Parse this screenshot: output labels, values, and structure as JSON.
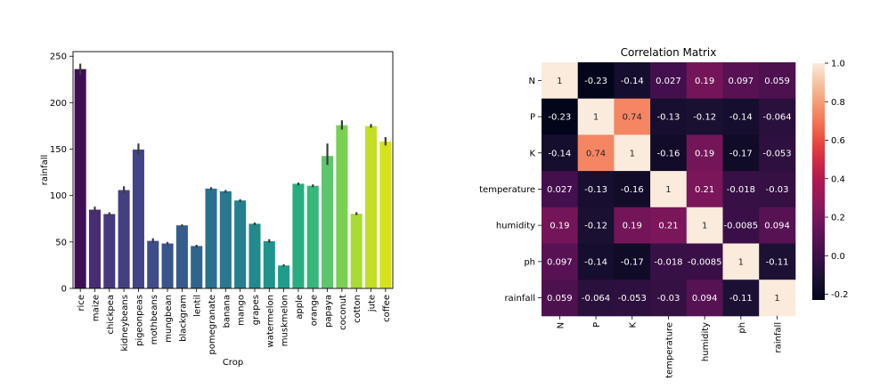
{
  "chart_data": [
    {
      "type": "bar",
      "title": "",
      "xlabel": "Crop",
      "ylabel": "rainfall",
      "ylim": [
        0,
        255
      ],
      "yticks": [
        0,
        50,
        100,
        150,
        200,
        250
      ],
      "grid": false,
      "categories": [
        "rice",
        "maize",
        "chickpea",
        "kidneybeans",
        "pigeonpeas",
        "mothbeans",
        "mungbean",
        "blackgram",
        "lentil",
        "pomegranate",
        "banana",
        "mango",
        "grapes",
        "watermelon",
        "muskmelon",
        "apple",
        "orange",
        "papaya",
        "coconut",
        "cotton",
        "jute",
        "coffee"
      ],
      "values": [
        236.2,
        84.8,
        80.1,
        105.9,
        149.5,
        51.2,
        48.4,
        67.9,
        45.7,
        107.5,
        104.6,
        94.7,
        69.6,
        50.8,
        24.7,
        112.7,
        110.5,
        142.6,
        175.7,
        80.4,
        174.8,
        158.1
      ],
      "error_low": [
        230,
        82,
        78,
        102,
        144,
        49,
        47,
        67,
        44,
        106,
        103,
        93,
        68,
        49,
        23.5,
        111,
        109,
        133,
        171,
        79,
        173,
        154
      ],
      "error_high": [
        242,
        88,
        82,
        110,
        156,
        54,
        50,
        69,
        47,
        109,
        106,
        96,
        71,
        53,
        26,
        114,
        112,
        156,
        181,
        82,
        177,
        163
      ],
      "colors": [
        "#3f0f56",
        "#472e72",
        "#463a7c",
        "#433f81",
        "#414487",
        "#3d4c8a",
        "#3a538b",
        "#355c8c",
        "#31648d",
        "#2b708e",
        "#2a778e",
        "#267f8e",
        "#22898d",
        "#1f938c",
        "#1e9d89",
        "#28ad80",
        "#36b87a",
        "#5cc66a",
        "#7ad151",
        "#a8db33",
        "#c2df23",
        "#d6e21a"
      ]
    },
    {
      "type": "heatmap",
      "title": "Correlation Matrix",
      "labels": [
        "N",
        "P",
        "K",
        "temperature",
        "humidity",
        "ph",
        "rainfall"
      ],
      "matrix": [
        [
          1,
          -0.23,
          -0.14,
          0.027,
          0.19,
          0.097,
          0.059
        ],
        [
          -0.23,
          1,
          0.74,
          -0.13,
          -0.12,
          -0.14,
          -0.064
        ],
        [
          -0.14,
          0.74,
          1,
          -0.16,
          0.19,
          -0.17,
          -0.053
        ],
        [
          0.027,
          -0.13,
          -0.16,
          1,
          0.21,
          -0.018,
          -0.03
        ],
        [
          0.19,
          -0.12,
          0.19,
          0.21,
          1,
          -0.0085,
          0.094
        ],
        [
          0.097,
          -0.14,
          -0.17,
          -0.018,
          -0.0085,
          1,
          -0.11
        ],
        [
          0.059,
          -0.064,
          -0.053,
          -0.03,
          0.094,
          -0.11,
          1
        ]
      ],
      "annotations": [
        [
          "1",
          "-0.23",
          "-0.14",
          "0.027",
          "0.19",
          "0.097",
          "0.059"
        ],
        [
          "-0.23",
          "1",
          "0.74",
          "-0.13",
          "-0.12",
          "-0.14",
          "-0.064"
        ],
        [
          "-0.14",
          "0.74",
          "1",
          "-0.16",
          "0.19",
          "-0.17",
          "-0.053"
        ],
        [
          "0.027",
          "-0.13",
          "-0.16",
          "1",
          "0.21",
          "-0.018",
          "-0.03"
        ],
        [
          "0.19",
          "-0.12",
          "0.19",
          "0.21",
          "1",
          "-0.0085",
          "0.094"
        ],
        [
          "0.097",
          "-0.14",
          "-0.17",
          "-0.018",
          "-0.0085",
          "1",
          "-0.11"
        ],
        [
          "0.059",
          "-0.064",
          "-0.053",
          "-0.03",
          "0.094",
          "-0.11",
          "1"
        ]
      ],
      "colorbar": {
        "min": -0.23,
        "max": 1.0,
        "ticks": [
          "1.0",
          "0.8",
          "0.6",
          "0.4",
          "0.2",
          "0.0",
          "-0.2"
        ],
        "tick_values": [
          1.0,
          0.8,
          0.6,
          0.4,
          0.2,
          0.0,
          -0.2
        ]
      },
      "colormap": "rocket"
    }
  ]
}
